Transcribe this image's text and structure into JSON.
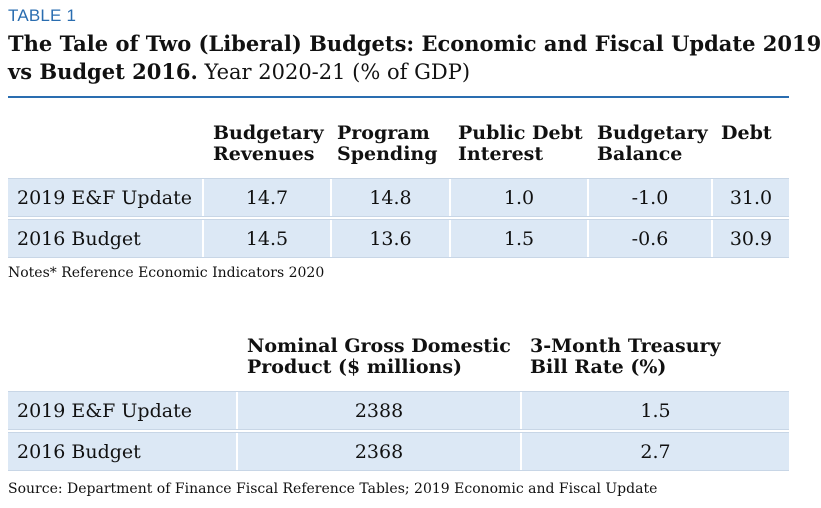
{
  "table_label": "TABLE 1",
  "title": {
    "bold_part_1": "The Tale of Two (Liberal) Budgets: Economic and Fiscal Update 2019",
    "bold_part_2": "vs Budget 2016.",
    "normal_part": " Year 2020-21 (% of GDP)"
  },
  "table1": {
    "headers": [
      {
        "line1": "Budgetary",
        "line2": "Revenues"
      },
      {
        "line1": "Program",
        "line2": "Spending"
      },
      {
        "line1": "Public Debt",
        "line2": "Interest"
      },
      {
        "line1": "Budgetary",
        "line2": "Balance"
      },
      {
        "line1": "Debt",
        "line2": ""
      }
    ],
    "rows": [
      {
        "name": "2019 E&F Update",
        "values": [
          "14.7",
          "14.8",
          "1.0",
          "-1.0",
          "31.0"
        ]
      },
      {
        "name": "2016 Budget",
        "values": [
          "14.5",
          "13.6",
          "1.5",
          "-0.6",
          "30.9"
        ]
      }
    ]
  },
  "notes": "Notes* Reference Economic Indicators 2020",
  "table2": {
    "headers": [
      {
        "line1": "Nominal Gross Domestic",
        "line2": "Product ($ millions)"
      },
      {
        "line1": "3-Month Treasury",
        "line2": "Bill Rate (%)"
      }
    ],
    "rows": [
      {
        "name": "2019 E&F Update",
        "values": [
          "2388",
          "1.5"
        ]
      },
      {
        "name": "2016 Budget",
        "values": [
          "2368",
          "2.7"
        ]
      }
    ]
  },
  "source": "Source: Department of Finance Fiscal Reference Tables; 2019 Economic and Fiscal Update",
  "colors": {
    "accent": "#2a6db0",
    "row_fill": "#dce8f5"
  }
}
